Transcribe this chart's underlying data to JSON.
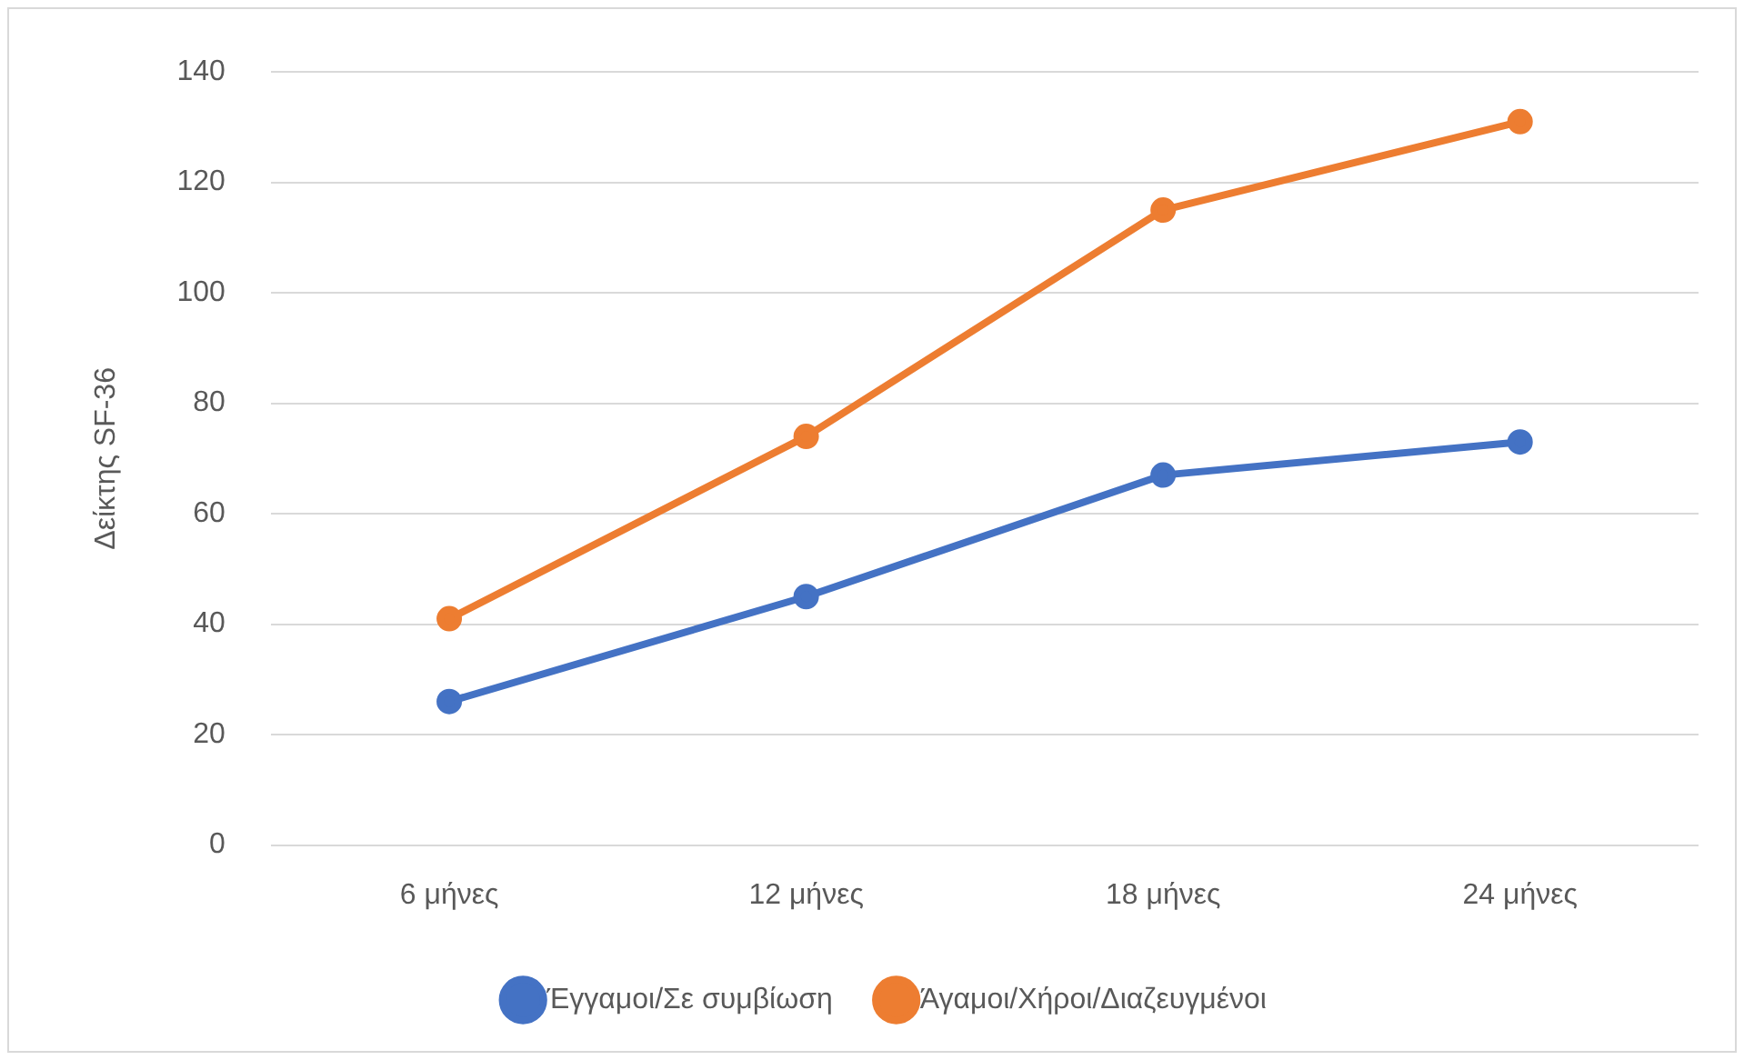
{
  "chart_data": {
    "type": "line",
    "ylabel": "Δείκτης SF-36",
    "categories": [
      "6 μήνες",
      "12 μήνες",
      "18 μήνες",
      "24 μήνες"
    ],
    "series": [
      {
        "name": "Έγγαμοι/Σε συμβίωση",
        "color": "#4472c4",
        "values": [
          26,
          45,
          67,
          73
        ]
      },
      {
        "name": "Άγαμοι/Χήροι/Διαζευγμένοι",
        "color": "#ed7d31",
        "values": [
          41,
          74,
          115,
          131
        ]
      }
    ],
    "ylim": [
      0,
      140
    ],
    "yticks": [
      0,
      20,
      40,
      60,
      80,
      100,
      120,
      140
    ],
    "grid": "y",
    "legend": "bottom",
    "marker": "circle",
    "line_style": "solid"
  }
}
